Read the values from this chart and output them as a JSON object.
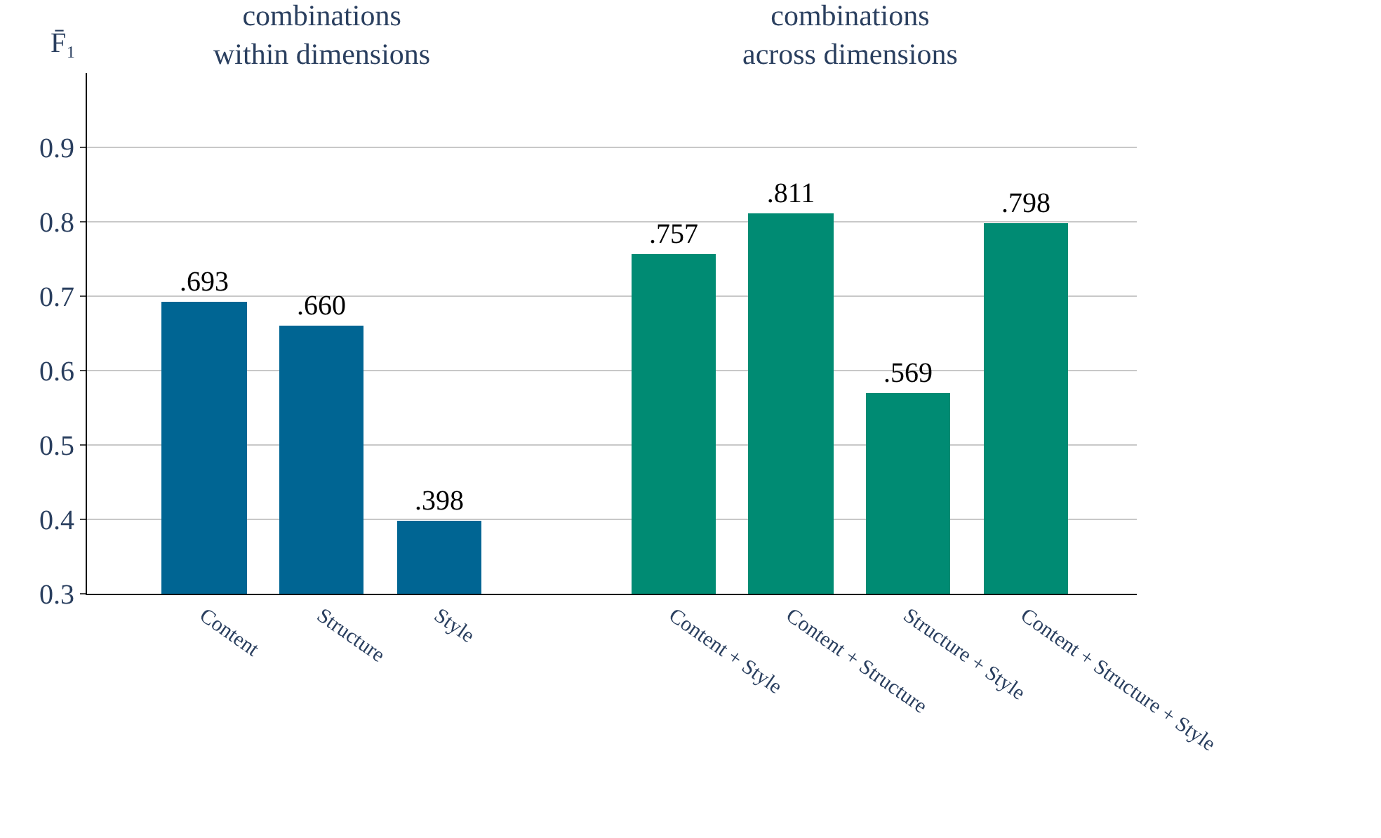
{
  "chart_data": {
    "type": "bar",
    "ylabel": "F̄₁",
    "categories": [
      "Content",
      "Structure",
      "Style",
      null,
      "Content + Style",
      "Content + Structure",
      "Structure + Style",
      "Content + Structure + Style"
    ],
    "values": [
      0.693,
      0.66,
      0.398,
      null,
      0.757,
      0.811,
      0.569,
      0.798
    ],
    "colors": [
      "#006593",
      "#006593",
      "#006593",
      null,
      "#008b73",
      "#008b73",
      "#008b73",
      "#008b73"
    ],
    "value_labels": [
      ".693",
      ".660",
      ".398",
      null,
      ".757",
      ".811",
      ".569",
      ".798"
    ],
    "annotations": [
      "combinations\nwithin dimensions",
      "combinations\nacross dimensions"
    ],
    "ylim": [
      0.3,
      1.0
    ],
    "yticks": [
      0.3,
      0.4,
      0.5,
      0.6,
      0.7,
      0.8,
      0.9
    ],
    "grid": "y",
    "legend": false
  }
}
